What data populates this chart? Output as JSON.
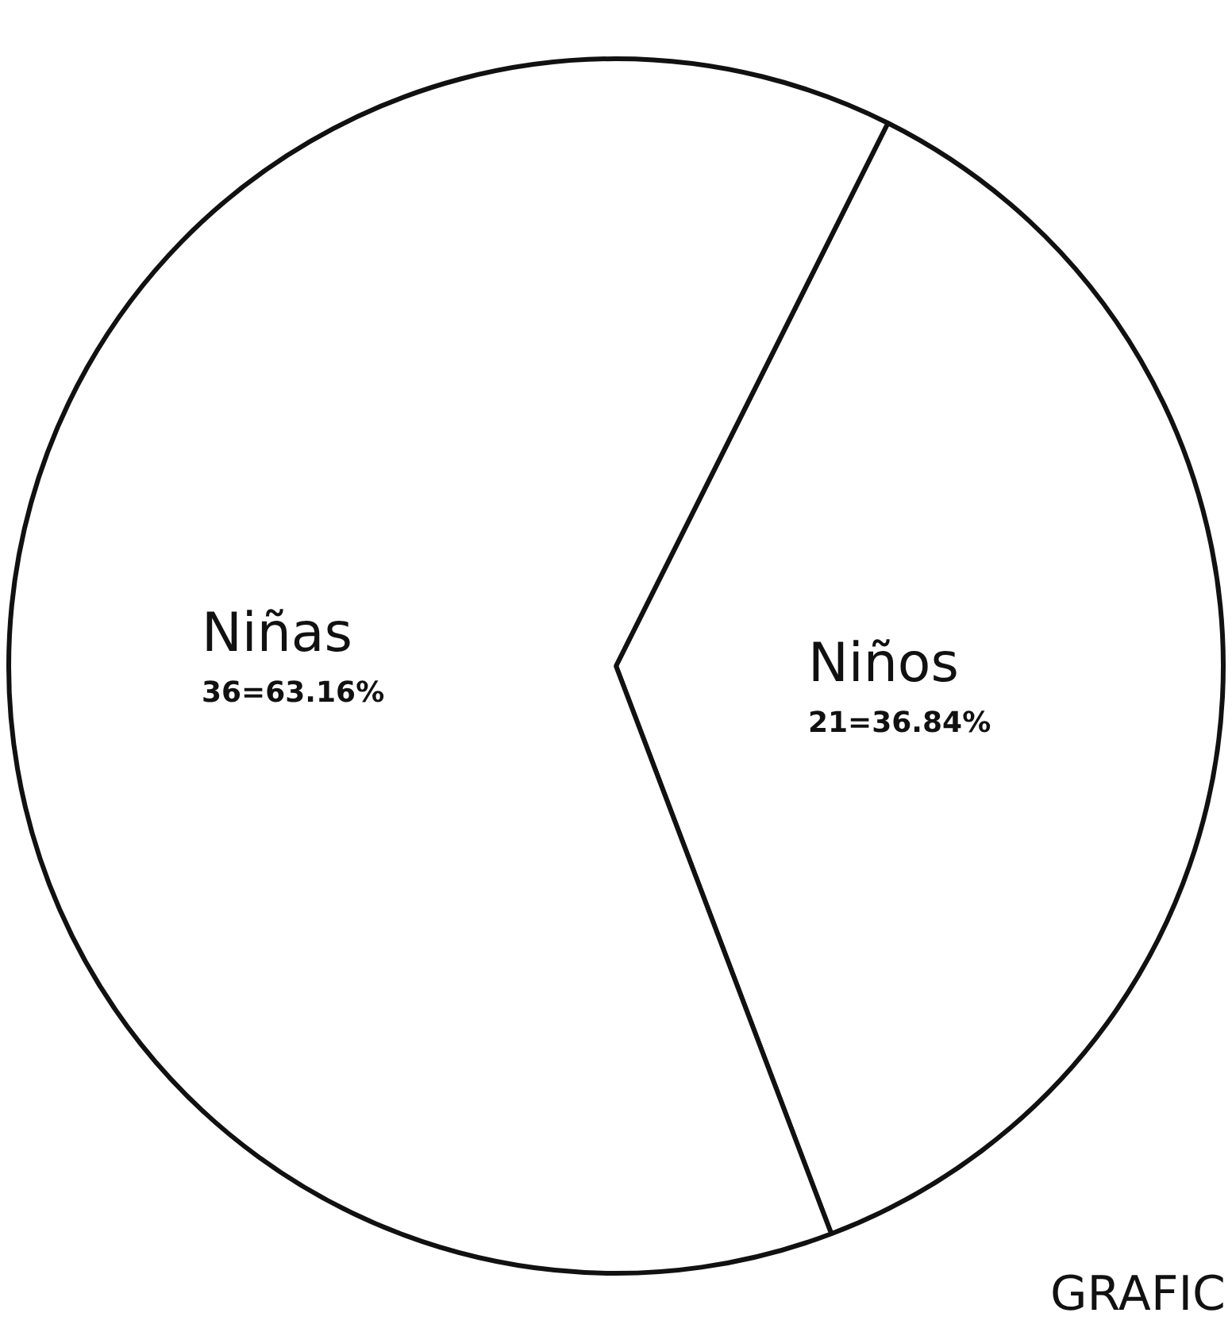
{
  "chart_data": {
    "type": "pie",
    "categories": [
      "Niños",
      "Niñas"
    ],
    "values": [
      21,
      36
    ],
    "colors": [
      "#ffffff",
      "#ffffff"
    ],
    "value_labels": [
      "21=36.84%",
      "36=63.16%"
    ],
    "annotations": [
      "GRAFIC"
    ],
    "legend": false
  }
}
